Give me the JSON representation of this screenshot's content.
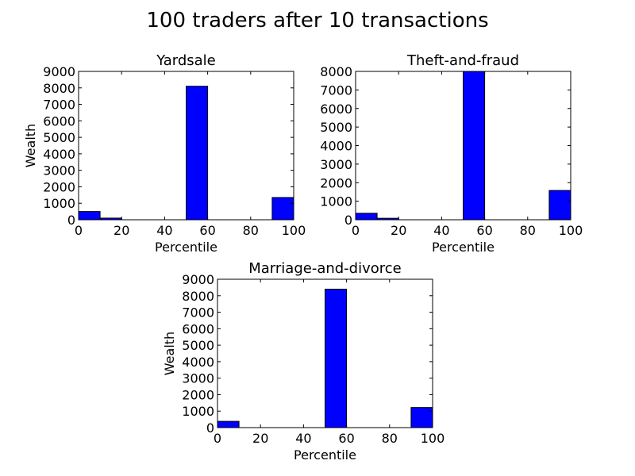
{
  "figure": {
    "title": "100 traders after 10 transactions"
  },
  "colors": {
    "bar_fill": "#0000ff",
    "bar_edge": "#000000",
    "background": "#ffffff"
  },
  "chart_data": [
    {
      "type": "bar",
      "title": "Yardsale",
      "xlabel": "Percentile",
      "ylabel": "Wealth",
      "xlim": [
        0,
        100
      ],
      "ylim": [
        0,
        9000
      ],
      "xticks": [
        0,
        20,
        40,
        60,
        80,
        100
      ],
      "yticks": [
        0,
        1000,
        2000,
        3000,
        4000,
        5000,
        6000,
        7000,
        8000,
        9000
      ],
      "bins": [
        [
          0,
          10
        ],
        [
          10,
          20
        ],
        [
          20,
          30
        ],
        [
          30,
          40
        ],
        [
          40,
          50
        ],
        [
          50,
          60
        ],
        [
          60,
          70
        ],
        [
          70,
          80
        ],
        [
          80,
          90
        ],
        [
          90,
          100
        ]
      ],
      "values": [
        500,
        100,
        0,
        0,
        0,
        8100,
        0,
        0,
        0,
        1350
      ]
    },
    {
      "type": "bar",
      "title": "Theft-and-fraud",
      "xlabel": "Percentile",
      "ylabel": "",
      "xlim": [
        0,
        100
      ],
      "ylim": [
        0,
        8000
      ],
      "xticks": [
        0,
        20,
        40,
        60,
        80,
        100
      ],
      "yticks": [
        0,
        1000,
        2000,
        3000,
        4000,
        5000,
        6000,
        7000,
        8000
      ],
      "bins": [
        [
          0,
          10
        ],
        [
          10,
          20
        ],
        [
          20,
          30
        ],
        [
          30,
          40
        ],
        [
          40,
          50
        ],
        [
          50,
          60
        ],
        [
          60,
          70
        ],
        [
          70,
          80
        ],
        [
          80,
          90
        ],
        [
          90,
          100
        ]
      ],
      "values": [
        350,
        80,
        0,
        0,
        0,
        8000,
        0,
        0,
        0,
        1580
      ]
    },
    {
      "type": "bar",
      "title": "Marriage-and-divorce",
      "xlabel": "Percentile",
      "ylabel": "Wealth",
      "xlim": [
        0,
        100
      ],
      "ylim": [
        0,
        9000
      ],
      "xticks": [
        0,
        20,
        40,
        60,
        80,
        100
      ],
      "yticks": [
        0,
        1000,
        2000,
        3000,
        4000,
        5000,
        6000,
        7000,
        8000,
        9000
      ],
      "bins": [
        [
          0,
          10
        ],
        [
          10,
          20
        ],
        [
          20,
          30
        ],
        [
          30,
          40
        ],
        [
          40,
          50
        ],
        [
          50,
          60
        ],
        [
          60,
          70
        ],
        [
          70,
          80
        ],
        [
          80,
          90
        ],
        [
          90,
          100
        ]
      ],
      "values": [
        380,
        0,
        0,
        0,
        0,
        8400,
        0,
        0,
        0,
        1220
      ]
    }
  ]
}
